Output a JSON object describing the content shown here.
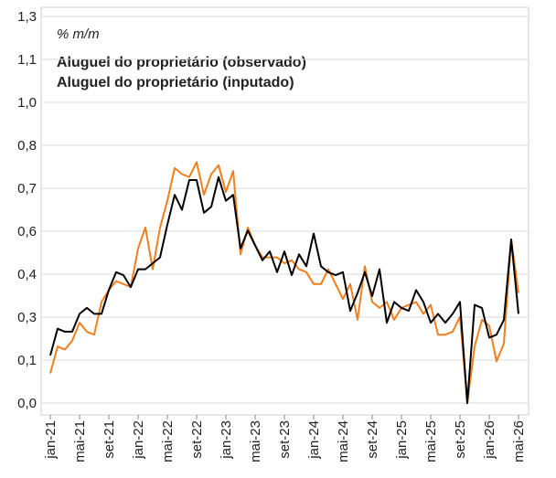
{
  "chart_data": {
    "type": "line",
    "ylabel": "% m/m",
    "categories": [
      "jan-21",
      null,
      null,
      null,
      "mai-21",
      null,
      null,
      null,
      "set-21",
      null,
      null,
      null,
      "jan-22",
      null,
      null,
      null,
      "mai-22",
      null,
      null,
      null,
      "set-22",
      null,
      null,
      null,
      "jan-23",
      null,
      null,
      null,
      "mai-23",
      null,
      null,
      null,
      "set-23",
      null,
      null,
      null,
      "jan-24",
      null,
      null,
      null,
      "mai-24",
      null,
      null,
      null,
      "set-24",
      null,
      null,
      null,
      "jan-25",
      null,
      null,
      null,
      "mai-25",
      null,
      null,
      null,
      "set-25",
      null,
      null,
      null,
      "jan-26",
      null,
      null,
      null,
      "mai-26"
    ],
    "series": [
      {
        "name": "Aluguel do proprietário (observado)",
        "color": "#f07f1e",
        "values": [
          0.1,
          0.19,
          0.18,
          0.21,
          0.27,
          0.24,
          0.23,
          0.34,
          0.38,
          0.41,
          0.4,
          0.39,
          0.52,
          0.59,
          0.45,
          0.59,
          0.68,
          0.79,
          0.77,
          0.76,
          0.81,
          0.7,
          0.77,
          0.8,
          0.71,
          0.78,
          0.5,
          0.59,
          0.53,
          0.49,
          0.49,
          0.49,
          0.47,
          0.48,
          0.45,
          0.44,
          0.4,
          0.4,
          0.45,
          0.4,
          0.35,
          0.4,
          0.28,
          0.46,
          0.34,
          0.32,
          0.34,
          0.28,
          0.32,
          0.33,
          0.34,
          0.3,
          0.33,
          0.23,
          0.23,
          0.24,
          0.29,
          0.0,
          0.19,
          0.28,
          0.26,
          0.14,
          0.2,
          0.55,
          0.37
        ]
      },
      {
        "name": "Aluguel do proprietário (inputado)",
        "color": "#000000",
        "values": [
          0.16,
          0.25,
          0.24,
          0.24,
          0.3,
          0.32,
          0.3,
          0.3,
          0.38,
          0.44,
          0.43,
          0.39,
          0.45,
          0.45,
          0.47,
          0.49,
          0.6,
          0.7,
          0.65,
          0.75,
          0.75,
          0.64,
          0.66,
          0.76,
          0.68,
          0.7,
          0.52,
          0.58,
          0.53,
          0.48,
          0.51,
          0.44,
          0.51,
          0.43,
          0.5,
          0.46,
          0.57,
          0.46,
          0.44,
          0.43,
          0.44,
          0.31,
          0.37,
          0.44,
          0.36,
          0.45,
          0.27,
          0.34,
          0.32,
          0.31,
          0.38,
          0.34,
          0.27,
          0.3,
          0.27,
          0.3,
          0.34,
          0.0,
          0.33,
          0.32,
          0.22,
          0.23,
          0.28,
          0.55,
          0.3
        ]
      }
    ],
    "ylim": [
      0,
      1.3
    ],
    "yticks": [
      {
        "value": 0,
        "label": "0,0"
      },
      {
        "value": 0.144,
        "label": "0,1"
      },
      {
        "value": 0.289,
        "label": "0,3"
      },
      {
        "value": 0.433,
        "label": "0,4"
      },
      {
        "value": 0.578,
        "label": "0,6"
      },
      {
        "value": 0.722,
        "label": "0,7"
      },
      {
        "value": 0.867,
        "label": "0,8"
      },
      {
        "value": 1.011,
        "label": "1,0"
      },
      {
        "value": 1.156,
        "label": "1,1"
      },
      {
        "value": 1.3,
        "label": "1,3"
      }
    ],
    "grid": true
  }
}
